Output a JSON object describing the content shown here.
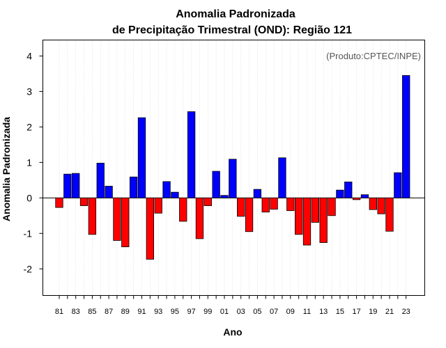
{
  "chart_data": {
    "type": "bar",
    "title": "Anomalia Padronizada",
    "subtitle": "de Precipitação Trimestral (OND): Região 121",
    "xlabel": "Ano",
    "ylabel": "Anomalia Padronizada",
    "credit": "(Produto:CPTEC/INPE)",
    "ylim": [
      -2.75,
      4.45
    ],
    "yticks": [
      -2,
      -1,
      0,
      1,
      2,
      3,
      4
    ],
    "categories": [
      "81",
      "82",
      "83",
      "84",
      "85",
      "86",
      "87",
      "88",
      "89",
      "90",
      "91",
      "92",
      "93",
      "94",
      "95",
      "96",
      "97",
      "98",
      "99",
      "00",
      "01",
      "02",
      "03",
      "04",
      "05",
      "06",
      "07",
      "08",
      "09",
      "10",
      "11",
      "12",
      "13",
      "14",
      "15",
      "16",
      "17",
      "18",
      "19",
      "20",
      "21",
      "22",
      "23"
    ],
    "xtick_labels": [
      "81",
      "83",
      "85",
      "87",
      "89",
      "91",
      "93",
      "95",
      "97",
      "99",
      "01",
      "03",
      "05",
      "07",
      "09",
      "11",
      "13",
      "15",
      "17",
      "19",
      "21",
      "23"
    ],
    "values": [
      -0.27,
      0.67,
      0.69,
      -0.22,
      -1.03,
      0.98,
      0.33,
      -1.2,
      -1.38,
      0.59,
      2.26,
      -1.73,
      -0.43,
      0.46,
      0.16,
      -0.66,
      2.43,
      -1.15,
      -0.22,
      0.75,
      0.07,
      1.09,
      -0.52,
      -0.95,
      0.24,
      -0.4,
      -0.32,
      1.13,
      -0.36,
      -1.03,
      -1.33,
      -0.69,
      -1.26,
      -0.5,
      0.22,
      0.45,
      -0.05,
      0.09,
      -0.33,
      -0.45,
      -0.94,
      0.71,
      3.45
    ],
    "positive_color": "#0000ff",
    "negative_color": "#ff0000",
    "grid": "vertical dotted"
  }
}
